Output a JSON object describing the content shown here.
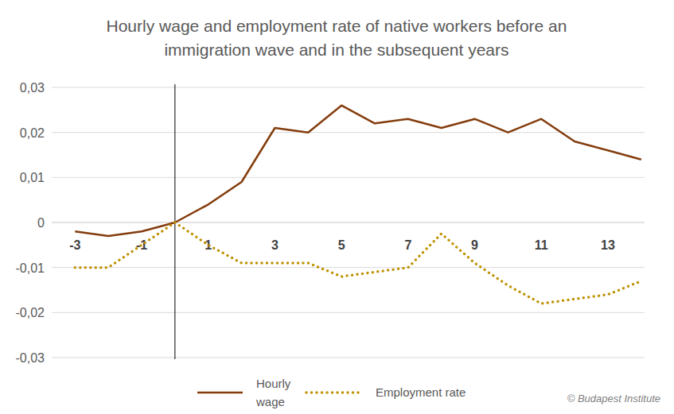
{
  "chart_data": {
    "type": "line",
    "title": "Hourly wage and employment rate of native workers before an immigration wave and in the subsequent years",
    "x": [
      -3,
      -2,
      -1,
      0,
      1,
      2,
      3,
      4,
      5,
      6,
      7,
      8,
      9,
      10,
      11,
      12,
      13,
      14
    ],
    "series": [
      {
        "name": "Hourly wage",
        "color": "#843c0c",
        "line_style": "solid",
        "values": [
          -0.002,
          -0.003,
          -0.002,
          0,
          0.004,
          0.009,
          0.021,
          0.02,
          0.026,
          0.022,
          0.023,
          0.021,
          0.023,
          0.02,
          0.023,
          0.018,
          0.016,
          0.014
        ]
      },
      {
        "name": "Employment rate",
        "color": "#bf9000",
        "line_style": "dotted",
        "values": [
          -0.01,
          -0.01,
          -0.005,
          0,
          -0.005,
          -0.009,
          -0.009,
          -0.009,
          -0.012,
          -0.011,
          -0.01,
          -0.0025,
          -0.009,
          -0.014,
          -0.018,
          -0.017,
          -0.016,
          -0.013
        ]
      }
    ],
    "event_x": 0,
    "xlim": [
      -3.7,
      14.1
    ],
    "xticks": [
      -3,
      -1,
      1,
      3,
      5,
      7,
      9,
      11,
      13
    ],
    "ylim": [
      -0.03,
      0.03
    ],
    "yticks": [
      {
        "value": -0.03,
        "label": "-0,03"
      },
      {
        "value": -0.02,
        "label": "-0,02"
      },
      {
        "value": -0.01,
        "label": "-0,01"
      },
      0,
      {
        "value": 0.01,
        "label": "0,01"
      },
      {
        "value": 0.02,
        "label": "0,02"
      },
      {
        "value": 0.03,
        "label": "0,03"
      }
    ],
    "grid": true,
    "legend": "bottom",
    "annotations": [
      "© Budapest Institute"
    ]
  }
}
